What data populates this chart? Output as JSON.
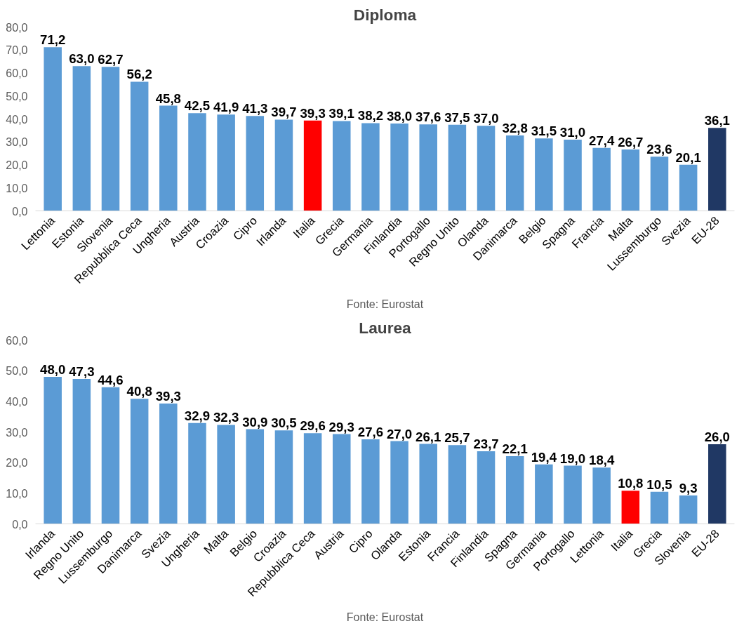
{
  "chart_data": [
    {
      "type": "bar",
      "title": "Diploma",
      "categories": [
        "Lettonia",
        "Estonia",
        "Slovenia",
        "Repubblica Ceca",
        "Ungheria",
        "Austria",
        "Croazia",
        "Cipro",
        "Irlanda",
        "Italia",
        "Grecia",
        "Germania",
        "Finlandia",
        "Portogallo",
        "Regno Unito",
        "Olanda",
        "Danimarca",
        "Belgio",
        "Spagna",
        "Francia",
        "Malta",
        "Lussemburgo",
        "Svezia",
        "EU-28"
      ],
      "values": [
        71.2,
        63.0,
        62.7,
        56.2,
        45.8,
        42.5,
        41.9,
        41.3,
        39.7,
        39.3,
        39.1,
        38.2,
        38.0,
        37.6,
        37.5,
        37.0,
        32.8,
        31.5,
        31.0,
        27.4,
        26.7,
        23.6,
        20.1,
        36.1
      ],
      "value_labels": [
        "71,2",
        "63,0",
        "62,7",
        "56,2",
        "45,8",
        "42,5",
        "41,9",
        "41,3",
        "39,7",
        "39,3",
        "39,1",
        "38,2",
        "38,0",
        "37,6",
        "37,5",
        "37,0",
        "32,8",
        "31,5",
        "31,0",
        "27,4",
        "26,7",
        "23,6",
        "20,1",
        "36,1"
      ],
      "colors": [
        "#5b9bd5",
        "#5b9bd5",
        "#5b9bd5",
        "#5b9bd5",
        "#5b9bd5",
        "#5b9bd5",
        "#5b9bd5",
        "#5b9bd5",
        "#5b9bd5",
        "#ff0000",
        "#5b9bd5",
        "#5b9bd5",
        "#5b9bd5",
        "#5b9bd5",
        "#5b9bd5",
        "#5b9bd5",
        "#5b9bd5",
        "#5b9bd5",
        "#5b9bd5",
        "#5b9bd5",
        "#5b9bd5",
        "#5b9bd5",
        "#5b9bd5",
        "#203864"
      ],
      "ylim": [
        0,
        80
      ],
      "yticks": [
        {
          "value": 0,
          "label": "0,0"
        },
        {
          "value": 10,
          "label": "10,0"
        },
        {
          "value": 20,
          "label": "20,0"
        },
        {
          "value": 30,
          "label": "30,0"
        },
        {
          "value": 40,
          "label": "40,0"
        },
        {
          "value": 50,
          "label": "50,0"
        },
        {
          "value": 60,
          "label": "60,0"
        },
        {
          "value": 70,
          "label": "70,0"
        },
        {
          "value": 80,
          "label": "80,0"
        }
      ],
      "annotations": [
        "Fonte: Eurostat"
      ]
    },
    {
      "type": "bar",
      "title": "Laurea",
      "categories": [
        "Irlanda",
        "Regno Unito",
        "Lussemburgo",
        "Danimarca",
        "Svezia",
        "Ungheria",
        "Malta",
        "Belgio",
        "Croazia",
        "Repubblica Ceca",
        "Austria",
        "Cipro",
        "Olanda",
        "Estonia",
        "Francia",
        "Finlandia",
        "Spagna",
        "Germania",
        "Portogallo",
        "Lettonia",
        "Italia",
        "Grecia",
        "Slovenia",
        "EU-28"
      ],
      "values": [
        48.0,
        47.3,
        44.6,
        40.8,
        39.3,
        32.9,
        32.3,
        30.9,
        30.5,
        29.6,
        29.3,
        27.6,
        27.0,
        26.1,
        25.7,
        23.7,
        22.1,
        19.4,
        19.0,
        18.4,
        10.8,
        10.5,
        9.3,
        26.0
      ],
      "value_labels": [
        "48,0",
        "47,3",
        "44,6",
        "40,8",
        "39,3",
        "32,9",
        "32,3",
        "30,9",
        "30,5",
        "29,6",
        "29,3",
        "27,6",
        "27,0",
        "26,1",
        "25,7",
        "23,7",
        "22,1",
        "19,4",
        "19,0",
        "18,4",
        "10,8",
        "10,5",
        "9,3",
        "26,0"
      ],
      "colors": [
        "#5b9bd5",
        "#5b9bd5",
        "#5b9bd5",
        "#5b9bd5",
        "#5b9bd5",
        "#5b9bd5",
        "#5b9bd5",
        "#5b9bd5",
        "#5b9bd5",
        "#5b9bd5",
        "#5b9bd5",
        "#5b9bd5",
        "#5b9bd5",
        "#5b9bd5",
        "#5b9bd5",
        "#5b9bd5",
        "#5b9bd5",
        "#5b9bd5",
        "#5b9bd5",
        "#5b9bd5",
        "#ff0000",
        "#5b9bd5",
        "#5b9bd5",
        "#203864"
      ],
      "ylim": [
        0,
        60
      ],
      "yticks": [
        {
          "value": 0,
          "label": "0,0"
        },
        {
          "value": 10,
          "label": "10,0"
        },
        {
          "value": 20,
          "label": "20,0"
        },
        {
          "value": 30,
          "label": "30,0"
        },
        {
          "value": 40,
          "label": "40,0"
        },
        {
          "value": 50,
          "label": "50,0"
        },
        {
          "value": 60,
          "label": "60,0"
        }
      ],
      "annotations": [
        "Fonte: Eurostat"
      ]
    }
  ]
}
